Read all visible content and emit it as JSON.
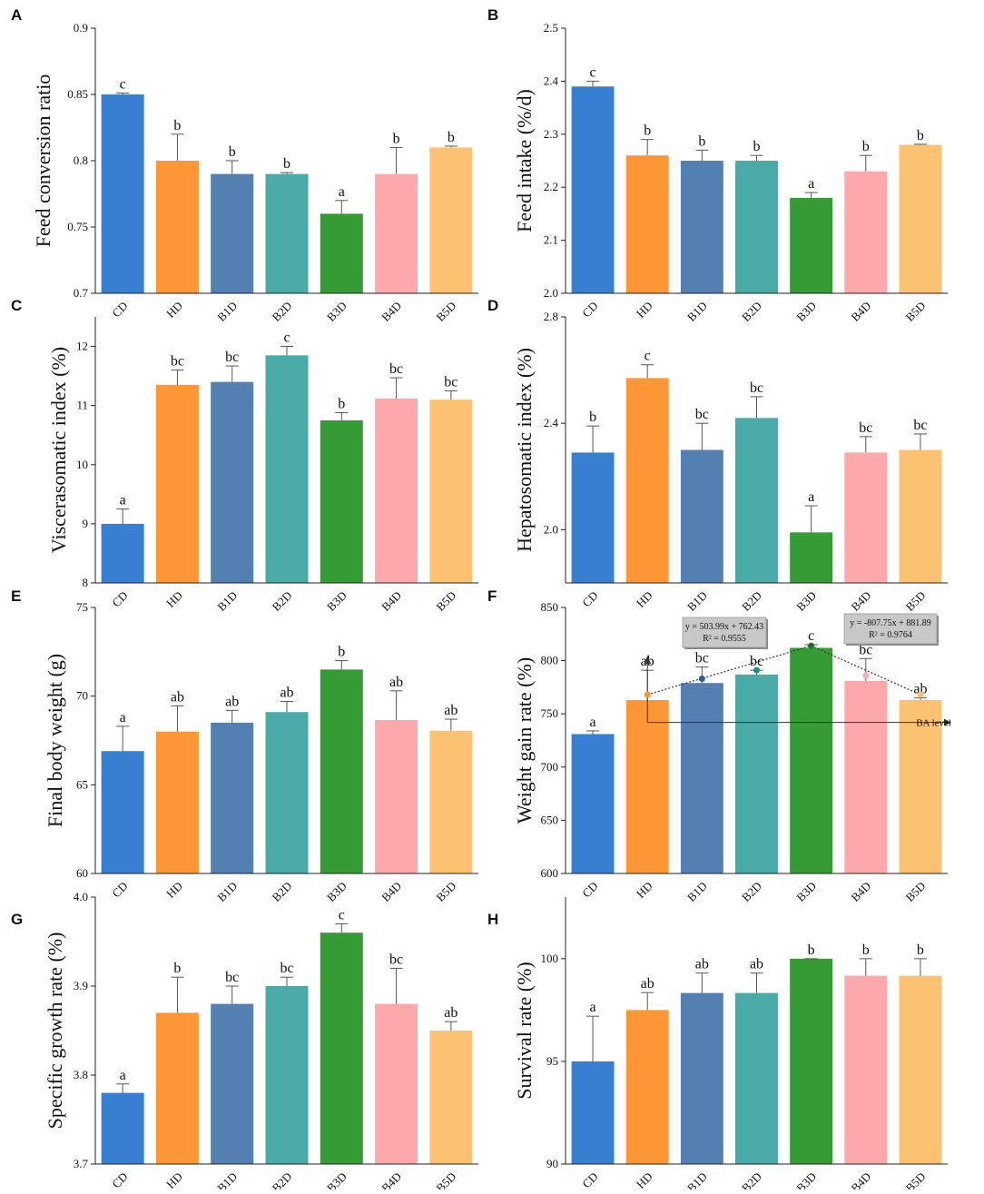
{
  "colors": {
    "CD": "#3780d1",
    "HD": "#fd9637",
    "B1D": "#547fb1",
    "B2D": "#4aaaa8",
    "B3D": "#359c35",
    "B4D": "#fda9ab",
    "B5D": "#fdc271",
    "axis": "#222222",
    "error_bar": "#555555",
    "trend_line": "#333333",
    "equation_box": "#c8c8c8"
  },
  "chart_data": [
    {
      "id": "A",
      "panel_label": "A",
      "type": "bar",
      "ylabel": "Feed conversion ratio",
      "xlabel": "",
      "categories": [
        "CD",
        "HD",
        "B1D",
        "B2D",
        "B3D",
        "B4D",
        "B5D"
      ],
      "values": [
        0.85,
        0.8,
        0.79,
        0.79,
        0.76,
        0.79,
        0.81
      ],
      "errors": [
        0.001,
        0.02,
        0.01,
        0.001,
        0.01,
        0.02,
        0.001
      ],
      "significance": [
        "c",
        "b",
        "b",
        "b",
        "a",
        "b",
        "b"
      ],
      "ylim": [
        0.7,
        0.9
      ],
      "yticks": [
        0.7,
        0.75,
        0.8,
        0.85,
        0.9
      ],
      "ytick_labels": [
        "0.7",
        "0.75",
        "0.8",
        "0.85",
        "0.9"
      ]
    },
    {
      "id": "B",
      "panel_label": "B",
      "type": "bar",
      "ylabel": "Feed intake (%/d)",
      "xlabel": "",
      "categories": [
        "CD",
        "HD",
        "B1D",
        "B2D",
        "B3D",
        "B4D",
        "B5D"
      ],
      "values": [
        2.39,
        2.26,
        2.25,
        2.25,
        2.18,
        2.23,
        2.28
      ],
      "errors": [
        0.01,
        0.03,
        0.02,
        0.01,
        0.01,
        0.03,
        0.001
      ],
      "significance": [
        "c",
        "b",
        "b",
        "b",
        "a",
        "b",
        "b"
      ],
      "ylim": [
        2.0,
        2.5
      ],
      "yticks": [
        2.0,
        2.1,
        2.2,
        2.3,
        2.4,
        2.5
      ],
      "ytick_labels": [
        "2.0",
        "2.1",
        "2.2",
        "2.3",
        "2.4",
        "2.5"
      ]
    },
    {
      "id": "C",
      "panel_label": "C",
      "type": "bar",
      "ylabel": "Viscerasomatic index (%)",
      "xlabel": "",
      "categories": [
        "CD",
        "HD",
        "B1D",
        "B2D",
        "B3D",
        "B4D",
        "B5D"
      ],
      "values": [
        9.0,
        11.35,
        11.4,
        11.85,
        10.75,
        11.12,
        11.1
      ],
      "errors": [
        0.25,
        0.25,
        0.27,
        0.15,
        0.13,
        0.35,
        0.15
      ],
      "significance": [
        "a",
        "bc",
        "bc",
        "c",
        "b",
        "bc",
        "bc"
      ],
      "ylim": [
        8,
        12.5
      ],
      "yticks": [
        8,
        9,
        10,
        11,
        12
      ],
      "ytick_labels": [
        "8",
        "9",
        "10",
        "11",
        "12"
      ]
    },
    {
      "id": "D",
      "panel_label": "D",
      "type": "bar",
      "ylabel": "Hepatosomatic index (%)",
      "xlabel": "",
      "categories": [
        "CD",
        "HD",
        "B1D",
        "B2D",
        "B3D",
        "B4D",
        "B5D"
      ],
      "values": [
        2.29,
        2.57,
        2.3,
        2.42,
        1.99,
        2.29,
        2.3
      ],
      "errors": [
        0.1,
        0.05,
        0.1,
        0.08,
        0.1,
        0.06,
        0.06
      ],
      "significance": [
        "b",
        "c",
        "bc",
        "bc",
        "a",
        "bc",
        "bc"
      ],
      "ylim": [
        1.8,
        2.8
      ],
      "yticks": [
        2.0,
        2.4,
        2.8
      ],
      "ytick_labels": [
        "2.0",
        "2.4",
        "2.8"
      ]
    },
    {
      "id": "E",
      "panel_label": "E",
      "type": "bar",
      "ylabel": "Final body weight (g)",
      "xlabel": "",
      "categories": [
        "CD",
        "HD",
        "B1D",
        "B2D",
        "B3D",
        "B4D",
        "B5D"
      ],
      "values": [
        66.9,
        68.0,
        68.5,
        69.1,
        71.5,
        68.65,
        68.05
      ],
      "errors": [
        1.4,
        1.45,
        0.7,
        0.6,
        0.5,
        1.65,
        0.65
      ],
      "significance": [
        "a",
        "ab",
        "ab",
        "ab",
        "b",
        "ab",
        "ab"
      ],
      "ylim": [
        60,
        75
      ],
      "yticks": [
        60,
        65,
        70,
        75
      ],
      "ytick_labels": [
        "60",
        "65",
        "70",
        "75"
      ]
    },
    {
      "id": "F",
      "panel_label": "F",
      "type": "bar",
      "ylabel": "Weight gain rate (%)",
      "xlabel": "",
      "categories": [
        "CD",
        "HD",
        "B1D",
        "B2D",
        "B3D",
        "B4D",
        "B5D"
      ],
      "values": [
        731,
        763,
        779,
        787,
        812,
        781,
        763
      ],
      "errors": [
        3,
        28,
        15,
        4,
        3,
        21,
        2
      ],
      "significance": [
        "a",
        "ab",
        "bc",
        "bc",
        "c",
        "bc",
        "ab"
      ],
      "ylim": [
        600,
        850
      ],
      "yticks": [
        600,
        650,
        700,
        750,
        800,
        850
      ],
      "ytick_labels": [
        "600",
        "650",
        "700",
        "750",
        "800",
        "850"
      ],
      "trend_points": [
        768,
        783,
        791,
        814,
        786,
        768
      ],
      "trend_axis_label": "BA level",
      "trend_axis_level": 742,
      "equations": [
        {
          "equation": "y = 503.99x + 762.43",
          "r2": "R² = 0.9555"
        },
        {
          "equation": "y = -807.75x + 881.89",
          "r2": "R² = 0.9764"
        }
      ]
    },
    {
      "id": "G",
      "panel_label": "G",
      "type": "bar",
      "ylabel": "Specific growth rate (%)",
      "xlabel": "",
      "categories": [
        "CD",
        "HD",
        "B1D",
        "B2D",
        "B3D",
        "B4D",
        "B5D"
      ],
      "values": [
        3.78,
        3.87,
        3.88,
        3.9,
        3.96,
        3.88,
        3.85
      ],
      "errors": [
        0.01,
        0.04,
        0.02,
        0.01,
        0.01,
        0.04,
        0.01
      ],
      "significance": [
        "a",
        "b",
        "bc",
        "bc",
        "c",
        "bc",
        "ab"
      ],
      "ylim": [
        3.7,
        4.0
      ],
      "yticks": [
        3.7,
        3.8,
        3.9,
        4.0
      ],
      "ytick_labels": [
        "3.7",
        "3.8",
        "3.9",
        "4.0"
      ]
    },
    {
      "id": "H",
      "panel_label": "H",
      "type": "bar",
      "ylabel": "Survival rate (%)",
      "xlabel": "",
      "categories": [
        "CD",
        "HD",
        "B1D",
        "B2D",
        "B3D",
        "B4D",
        "B5D"
      ],
      "values": [
        95.0,
        97.5,
        98.33,
        98.33,
        100.0,
        99.17,
        99.17
      ],
      "errors": [
        2.2,
        0.85,
        0.97,
        0.97,
        0.0,
        0.83,
        0.83
      ],
      "significance": [
        "a",
        "ab",
        "ab",
        "ab",
        "b",
        "b",
        "b"
      ],
      "ylim": [
        90,
        103
      ],
      "yticks": [
        90,
        95,
        100
      ],
      "ytick_labels": [
        "90",
        "95",
        "100"
      ]
    }
  ]
}
